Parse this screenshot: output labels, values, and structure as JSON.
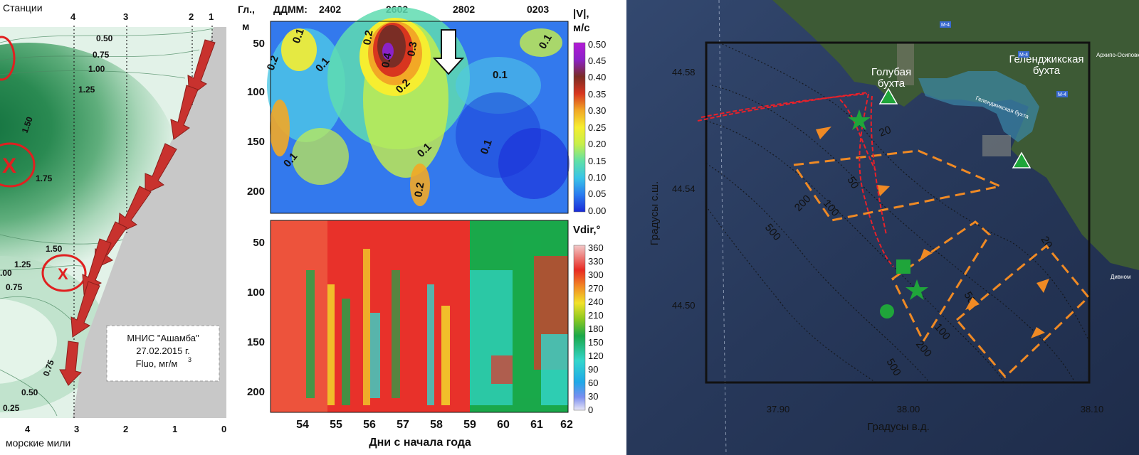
{
  "left_panel": {
    "stations_label": "Станции",
    "stations": [
      "4",
      "3",
      "2",
      "1"
    ],
    "x_ticks": [
      "4",
      "3",
      "2",
      "1",
      "0"
    ],
    "x_label": "морские мили",
    "contour_labels": [
      "0.50",
      "0.75",
      "1.00",
      "1.25",
      "1.50",
      "1.75",
      "1.50",
      "1.25",
      ".00",
      "0.75",
      "0.75",
      "0.50",
      "0.25"
    ],
    "legend": {
      "line1": "МНИС \"Ашамба\"",
      "line2": "27.02.2015 г.",
      "line3": "Fluo, мг/м"
    },
    "legend_sup": "3",
    "colors": {
      "shelf": "#c8c8c8",
      "deep": "#1e7a45",
      "light": "#e2f2e8",
      "arrow": "#c8322e",
      "circle": "#e02020"
    }
  },
  "middle_panel": {
    "depth_axis_label_1": "Гл.,",
    "depth_axis_label_2": "м",
    "date_label": "ДДММ:",
    "date_ticks": [
      "2402",
      "2602",
      "2802",
      "0203"
    ],
    "depth_ticks": [
      "50",
      "100",
      "150",
      "200"
    ],
    "x_ticks": [
      "54",
      "55",
      "56",
      "57",
      "58",
      "59",
      "60",
      "61",
      "62"
    ],
    "x_label": "Дни с начала года",
    "top_colorbar": {
      "title_1": "|V|,",
      "title_2": "м/с",
      "ticks": [
        "0.50",
        "0.45",
        "0.40",
        "0.35",
        "0.30",
        "0.25",
        "0.20",
        "0.15",
        "0.10",
        "0.05",
        "0.00"
      ]
    },
    "bottom_colorbar": {
      "title": "Vdir,°",
      "ticks": [
        "360",
        "330",
        "300",
        "270",
        "240",
        "210",
        "180",
        "150",
        "120",
        "90",
        "60",
        "30",
        "0"
      ]
    },
    "contour_labels_top": [
      "0.2",
      "0.1",
      "0.1",
      "0.2",
      "0.4",
      "0.3",
      "0.2",
      "0.1",
      "0.1",
      "0.1",
      "0.1",
      "0.1",
      "0.2"
    ]
  },
  "right_panel": {
    "lat_ticks": [
      "44.58",
      "44.54",
      "44.50"
    ],
    "lon_ticks": [
      "37.90",
      "38.00",
      "38.10"
    ],
    "y_label": "Градусы с.ш.",
    "x_label": "Градусы в.д.",
    "place_1_line1": "Голубая",
    "place_1_line2": "бухта",
    "place_2_line1": "Геленджикская",
    "place_2_line2": "бухта",
    "small_labels": [
      "Геленджикская бухта",
      "Дивном",
      "Архипо-Осиповка"
    ],
    "road_labels": [
      "М-4",
      "М-4",
      "М-4"
    ],
    "depth_labels": [
      "20",
      "50",
      "100",
      "200",
      "500",
      "20",
      "50",
      "100",
      "200",
      "500"
    ],
    "colors": {
      "sea": "#27385a",
      "land": "#3d5a35",
      "track": "#f08a24",
      "ship": "#e8212a",
      "marker": "#1fa53a"
    }
  }
}
